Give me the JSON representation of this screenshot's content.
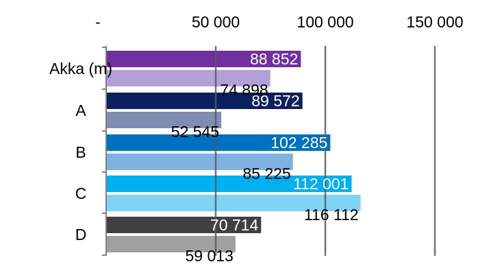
{
  "chart_data": {
    "type": "bar",
    "orientation": "horizontal",
    "xlim": [
      0,
      150000
    ],
    "x_ticks": [
      {
        "value": 0,
        "label": "-"
      },
      {
        "value": 50000,
        "label": "50 000"
      },
      {
        "value": 100000,
        "label": "100 000"
      },
      {
        "value": 150000,
        "label": "150 000"
      }
    ],
    "axis_position": "top",
    "grid": true,
    "categories": [
      {
        "label": "Akka (m)",
        "bars": [
          {
            "value": 88852,
            "label": "88 852",
            "color": "#7030a0",
            "label_color": "#ffffff",
            "label_inside": true
          },
          {
            "value": 74898,
            "label": "74 898",
            "color": "#b4a0d8",
            "label_color": "#000000",
            "label_inside": false
          }
        ]
      },
      {
        "label": "A",
        "bars": [
          {
            "value": 89572,
            "label": "89 572",
            "color": "#0c1f5f",
            "label_color": "#ffffff",
            "label_inside": true
          },
          {
            "value": 52545,
            "label": "52 545",
            "color": "#7f8db0",
            "label_color": "#000000",
            "label_inside": false
          }
        ]
      },
      {
        "label": "B",
        "bars": [
          {
            "value": 102285,
            "label": "102 285",
            "color": "#0070c0",
            "label_color": "#ffffff",
            "label_inside": true
          },
          {
            "value": 85225,
            "label": "85 225",
            "color": "#7fb2e0",
            "label_color": "#000000",
            "label_inside": false
          }
        ]
      },
      {
        "label": "C",
        "bars": [
          {
            "value": 112001,
            "label": "112 001",
            "color": "#00b0f0",
            "label_color": "#ffffff",
            "label_inside": true
          },
          {
            "value": 116112,
            "label": "116 112",
            "color": "#7fd3f5",
            "label_color": "#000000",
            "label_inside": false
          }
        ]
      },
      {
        "label": "D",
        "bars": [
          {
            "value": 70714,
            "label": "70 714",
            "color": "#404040",
            "label_color": "#ffffff",
            "label_inside": true
          },
          {
            "value": 59013,
            "label": "59 013",
            "color": "#a0a0a0",
            "label_color": "#000000",
            "label_inside": false
          }
        ]
      }
    ]
  }
}
